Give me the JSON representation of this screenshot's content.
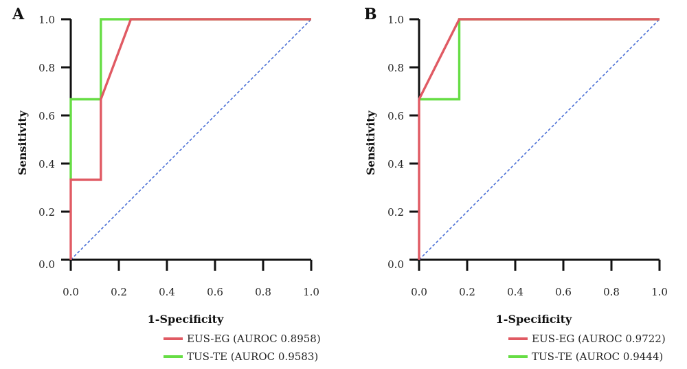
{
  "chart_data": [
    {
      "type": "line",
      "panel_label": "A",
      "xlabel": "1-Specificity",
      "ylabel": "Sensitivity",
      "xlim": [
        0,
        1
      ],
      "ylim": [
        0,
        1
      ],
      "x_ticks": [
        "0.0",
        "0.2",
        "0.4",
        "0.6",
        "0.8",
        "1.0"
      ],
      "y_ticks": [
        "0.0",
        "0.2",
        "0.4",
        "0.6",
        "0.8",
        "1.0"
      ],
      "grid": false,
      "legend_position": "bottom-right",
      "series": [
        {
          "name": "EUS-EG (AUROC 0.8958)",
          "color": "#e05a63",
          "x": [
            0,
            0,
            0.125,
            0.125,
            0.25,
            1
          ],
          "y": [
            0,
            0.333,
            0.333,
            0.667,
            1,
            1
          ]
        },
        {
          "name": "TUS-TE (AUROC 0.9583)",
          "color": "#66dd44",
          "x": [
            0,
            0,
            0.125,
            0.125,
            0.25,
            1
          ],
          "y": [
            0.333,
            0.667,
            0.667,
            1,
            1,
            1
          ]
        }
      ],
      "reference_line": {
        "color": "#4a6fd6",
        "x": [
          0,
          1
        ],
        "y": [
          0,
          1
        ]
      }
    },
    {
      "type": "line",
      "panel_label": "B",
      "xlabel": "1-Specificity",
      "ylabel": "Sensitivity",
      "xlim": [
        0,
        1
      ],
      "ylim": [
        0,
        1
      ],
      "x_ticks": [
        "0.0",
        "0.2",
        "0.4",
        "0.6",
        "0.8",
        "1.0"
      ],
      "y_ticks": [
        "0.0",
        "0.2",
        "0.4",
        "0.6",
        "0.8",
        "1.0"
      ],
      "grid": false,
      "legend_position": "bottom-right",
      "series": [
        {
          "name": "EUS-EG (AUROC 0.9722)",
          "color": "#e05a63",
          "x": [
            0,
            0,
            0.167,
            1
          ],
          "y": [
            0,
            0.667,
            1,
            1
          ]
        },
        {
          "name": "TUS-TE (AUROC 0.9444)",
          "color": "#66dd44",
          "x": [
            0,
            0.167,
            0.167,
            1
          ],
          "y": [
            0.667,
            0.667,
            1,
            1
          ]
        }
      ],
      "reference_line": {
        "color": "#4a6fd6",
        "x": [
          0,
          1
        ],
        "y": [
          0,
          1
        ]
      }
    }
  ]
}
